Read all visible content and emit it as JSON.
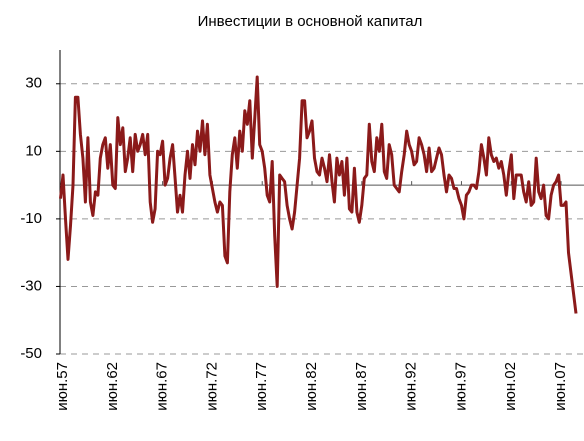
{
  "chart_data": {
    "type": "line",
    "title": "Инвестиции в основной капитал",
    "categories": [
      null,
      "июн.57",
      null,
      null,
      null,
      null,
      null,
      null,
      null,
      null,
      null,
      null,
      null,
      null,
      null,
      null,
      null,
      null,
      null,
      null,
      null,
      "июн.62",
      null,
      null,
      null,
      null,
      null,
      null,
      null,
      null,
      null,
      null,
      null,
      null,
      null,
      null,
      null,
      null,
      null,
      null,
      null,
      "июн.67",
      null,
      null,
      null,
      null,
      null,
      null,
      null,
      null,
      null,
      null,
      null,
      null,
      null,
      null,
      null,
      null,
      null,
      null,
      null,
      "июн.72",
      null,
      null,
      null,
      null,
      null,
      null,
      null,
      null,
      null,
      null,
      null,
      null,
      null,
      null,
      null,
      null,
      null,
      null,
      null,
      "июн.77",
      null,
      null,
      null,
      null,
      null,
      null,
      null,
      null,
      null,
      null,
      null,
      null,
      null,
      null,
      null,
      null,
      null,
      null,
      null,
      "июн.82",
      null,
      null,
      null,
      null,
      null,
      null,
      null,
      null,
      null,
      null,
      null,
      null,
      null,
      null,
      null,
      null,
      null,
      null,
      null,
      "июн.87",
      null,
      null,
      null,
      null,
      null,
      null,
      null,
      null,
      null,
      null,
      null,
      null,
      null,
      null,
      null,
      null,
      null,
      null,
      null,
      "июн.92",
      null,
      null,
      null,
      null,
      null,
      null,
      null,
      null,
      null,
      null,
      null,
      null,
      null,
      null,
      null,
      null,
      null,
      null,
      null,
      "июн.97",
      null,
      null,
      null,
      null,
      null,
      null,
      null,
      null,
      null,
      null,
      null,
      null,
      null,
      null,
      null,
      null,
      null,
      null,
      null,
      "июн.02",
      null,
      null,
      null,
      null,
      null,
      null,
      null,
      null,
      null,
      null,
      null,
      null,
      null,
      null,
      null,
      null,
      null,
      null,
      null,
      "июн.07",
      null,
      null,
      null,
      null,
      null,
      null
    ],
    "series": [
      {
        "color": "#8b1a1a",
        "values": [
          -4,
          3,
          -10,
          -22,
          -12,
          0,
          26,
          26,
          15,
          8,
          -5,
          14,
          -5,
          -9,
          -2,
          -3,
          8,
          12,
          14,
          5,
          12,
          0,
          -1,
          20,
          12,
          17,
          4,
          8,
          14,
          4,
          15,
          10,
          12,
          15,
          9,
          15,
          -5,
          -11,
          -7,
          10,
          9,
          13,
          0,
          2,
          8,
          12,
          2,
          -8,
          -3,
          -8,
          3,
          10,
          2,
          12,
          6,
          16,
          10,
          19,
          9,
          18,
          3,
          -1,
          -5,
          -8,
          -5,
          -6,
          -21,
          -23,
          -2,
          9,
          14,
          5,
          16,
          10,
          22,
          18,
          25,
          8,
          20,
          32,
          12,
          10,
          5,
          -3,
          -5,
          7,
          -15,
          -30,
          3,
          2,
          1,
          -6,
          -10,
          -13,
          -8,
          0,
          8,
          25,
          25,
          14,
          16,
          19,
          8,
          4,
          3,
          8,
          5,
          1,
          9,
          1,
          -5,
          8,
          3,
          7,
          -3,
          8,
          -7,
          -8,
          5,
          -8,
          -11,
          -6,
          2,
          3,
          18,
          7,
          4,
          14,
          10,
          18,
          4,
          2,
          12,
          9,
          0,
          -1,
          -2,
          4,
          9,
          16,
          12,
          10,
          6,
          7,
          14,
          12,
          9,
          4,
          11,
          4,
          5,
          8,
          11,
          9,
          3,
          -2,
          3,
          2,
          -1,
          -1,
          -4,
          -6,
          -10,
          -3,
          -2,
          0,
          0,
          -1,
          4,
          12,
          8,
          3,
          14,
          9,
          7,
          8,
          5,
          7,
          3,
          -3,
          4,
          9,
          -4,
          3,
          3,
          3,
          -2,
          -5,
          1,
          -6,
          -5,
          8,
          -2,
          -4,
          0,
          -9,
          -10,
          -3,
          0,
          1,
          3,
          -6,
          -6,
          -5,
          -20,
          -26,
          -32,
          -38
        ]
      }
    ],
    "ylim": [
      -50,
      40
    ],
    "yticks": [
      30,
      10,
      -10,
      -30,
      -50
    ],
    "grid": true
  }
}
